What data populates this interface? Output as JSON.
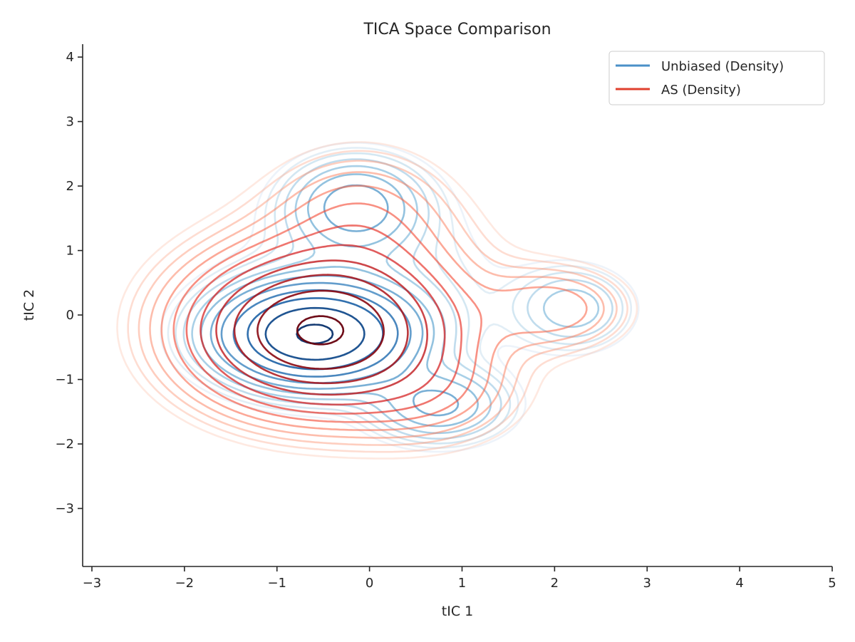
{
  "chart_data": {
    "type": "contour",
    "title": "TICA Space Comparison",
    "xlabel": "tIC 1",
    "ylabel": "tIC 2",
    "xlim": [
      -3.1,
      5.0
    ],
    "ylim": [
      -3.9,
      4.2
    ],
    "xticks": [
      -3,
      -2,
      -1,
      0,
      1,
      2,
      3,
      4,
      5
    ],
    "yticks": [
      -3,
      -2,
      -1,
      0,
      1,
      2,
      3,
      4
    ],
    "xtick_labels": [
      "−3",
      "−2",
      "−1",
      "0",
      "1",
      "2",
      "3",
      "4",
      "5"
    ],
    "ytick_labels": [
      "−3",
      "−2",
      "−1",
      "0",
      "1",
      "2",
      "3",
      "4"
    ],
    "legend_position": "top-right",
    "grid": false,
    "series": [
      {
        "name": "Unbiased (Density)",
        "legend_color": "#4a90c8",
        "colormap": "Blues",
        "components": [
          {
            "mx": -0.6,
            "my": -0.3,
            "sx": 0.6,
            "sy": 0.45,
            "w": 1.0
          },
          {
            "mx": -0.15,
            "my": 1.7,
            "sx": 0.45,
            "sy": 0.45,
            "w": 0.22
          },
          {
            "mx": 0.75,
            "my": -1.4,
            "sx": 0.45,
            "sy": 0.35,
            "w": 0.2
          },
          {
            "mx": 2.2,
            "my": 0.1,
            "sx": 0.4,
            "sy": 0.4,
            "w": 0.12
          },
          {
            "mx": 0.0,
            "my": 0.4,
            "sx": 1.0,
            "sy": 1.0,
            "w": 0.06
          }
        ]
      },
      {
        "name": "AS (Density)",
        "legend_color": "#e0402e",
        "colormap": "Reds",
        "components": [
          {
            "mx": -0.55,
            "my": -0.25,
            "sx": 0.75,
            "sy": 0.65,
            "w": 1.0
          },
          {
            "mx": 2.0,
            "my": 0.1,
            "sx": 0.5,
            "sy": 0.4,
            "w": 0.12
          },
          {
            "mx": -0.1,
            "my": 1.4,
            "sx": 0.6,
            "sy": 0.7,
            "w": 0.12
          },
          {
            "mx": 0.6,
            "my": -1.2,
            "sx": 0.6,
            "sy": 0.5,
            "w": 0.1
          },
          {
            "mx": -0.3,
            "my": 0.0,
            "sx": 1.2,
            "sy": 1.1,
            "w": 0.1
          }
        ]
      }
    ]
  }
}
